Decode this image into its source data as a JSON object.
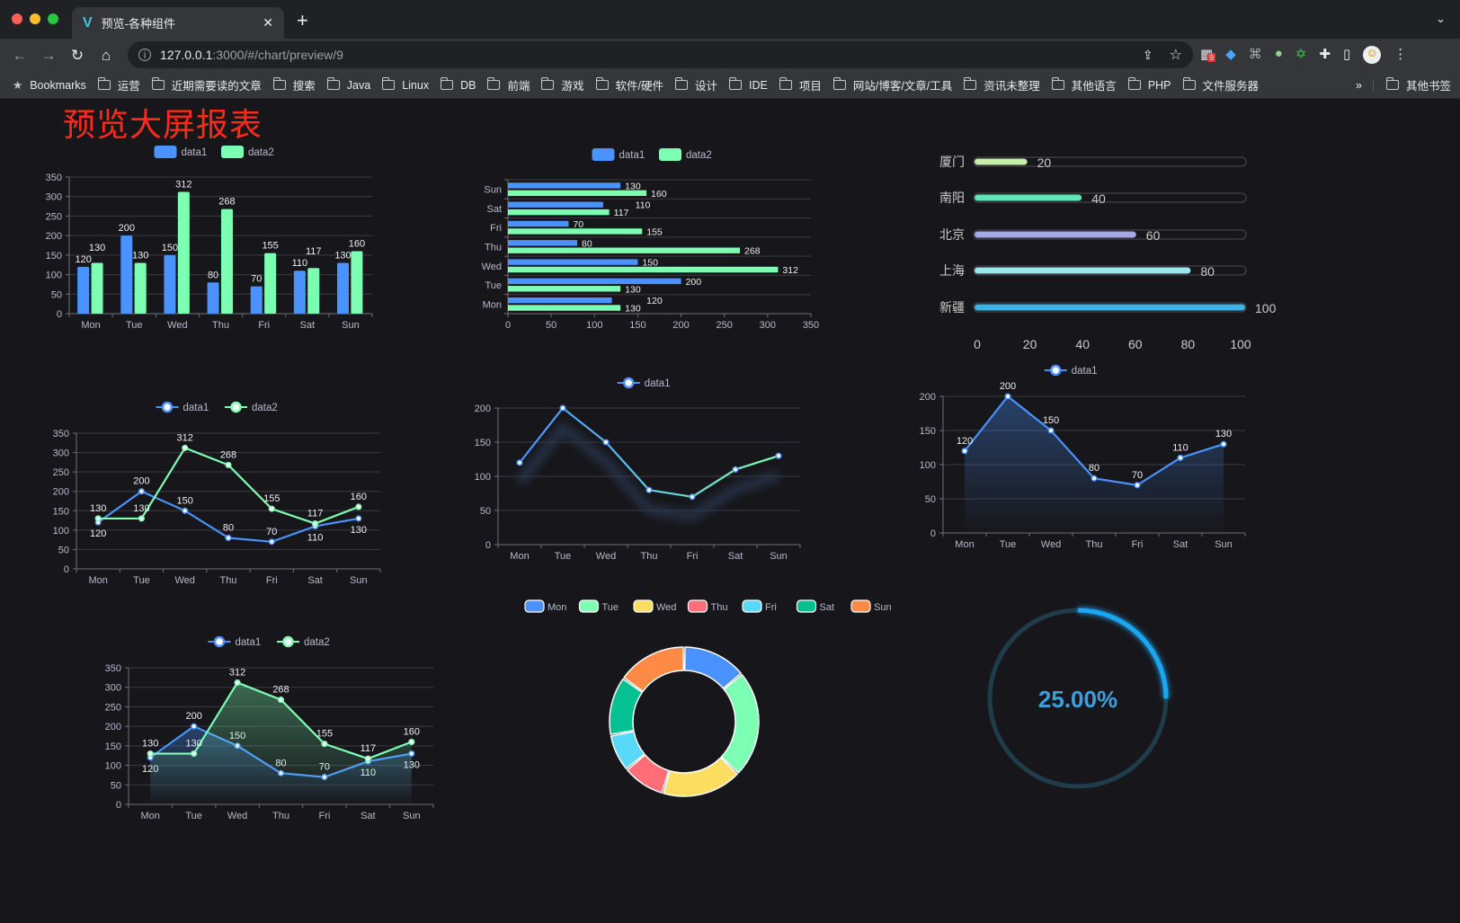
{
  "browser": {
    "tab_title": "预览-各种组件",
    "url_host": "127.0.0.1",
    "url_rest": ":3000/#/chart/preview/9",
    "extension_badge": "9",
    "bookmarks": [
      "Bookmarks",
      "运营",
      "近期需要读的文章",
      "搜索",
      "Java",
      "Linux",
      "DB",
      "前端",
      "游戏",
      "软件/硬件",
      "设计",
      "IDE",
      "项目",
      "网站/博客/文章/工具",
      "资讯未整理",
      "其他语言",
      "PHP",
      "文件服务器"
    ],
    "more": "»",
    "other_bookmarks": "其他书签"
  },
  "page": {
    "title": "预览大屏报表"
  },
  "colors": {
    "data1": "#4992ff",
    "data2": "#7cffb2",
    "title": "#ff2a1a",
    "gauge": "#1aa6f0"
  },
  "chart_data": [
    {
      "type": "bar",
      "categories": [
        "Mon",
        "Tue",
        "Wed",
        "Thu",
        "Fri",
        "Sat",
        "Sun"
      ],
      "ylim": [
        0,
        350
      ],
      "yticks": [
        0,
        50,
        100,
        150,
        200,
        250,
        300,
        350
      ],
      "legend": "top-center",
      "series": [
        {
          "name": "data1",
          "values": [
            120,
            200,
            150,
            80,
            70,
            110,
            130
          ]
        },
        {
          "name": "data2",
          "values": [
            130,
            130,
            312,
            268,
            155,
            117,
            160
          ]
        }
      ]
    },
    {
      "type": "bar",
      "orientation": "horizontal",
      "categories": [
        "Mon",
        "Tue",
        "Wed",
        "Thu",
        "Fri",
        "Sat",
        "Sun"
      ],
      "xlim": [
        0,
        350
      ],
      "xticks": [
        0,
        50,
        100,
        150,
        200,
        250,
        300,
        350
      ],
      "legend": "top-center",
      "series": [
        {
          "name": "data1",
          "values": [
            120,
            200,
            150,
            80,
            70,
            110,
            130
          ]
        },
        {
          "name": "data2",
          "values": [
            130,
            130,
            312,
            268,
            155,
            117,
            160
          ]
        }
      ]
    },
    {
      "type": "bar",
      "orientation": "horizontal",
      "style": "progress",
      "categories": [
        "厦门",
        "南阳",
        "北京",
        "上海",
        "新疆"
      ],
      "values": [
        20,
        40,
        60,
        80,
        100
      ],
      "xlim": [
        0,
        100
      ],
      "xticks": [
        0,
        20,
        40,
        60,
        80,
        100
      ],
      "colors": [
        "#c6eea8",
        "#5ee5b4",
        "#a3a8ea",
        "#9ae7ee",
        "#3db2e6"
      ]
    },
    {
      "type": "line",
      "categories": [
        "Mon",
        "Tue",
        "Wed",
        "Thu",
        "Fri",
        "Sat",
        "Sun"
      ],
      "ylim": [
        0,
        350
      ],
      "yticks": [
        0,
        50,
        100,
        150,
        200,
        250,
        300,
        350
      ],
      "legend": "top-center",
      "series": [
        {
          "name": "data1",
          "values": [
            120,
            200,
            150,
            80,
            70,
            110,
            130
          ]
        },
        {
          "name": "data2",
          "values": [
            130,
            130,
            312,
            268,
            155,
            117,
            160
          ]
        }
      ]
    },
    {
      "type": "line",
      "gradient_line": true,
      "categories": [
        "Mon",
        "Tue",
        "Wed",
        "Thu",
        "Fri",
        "Sat",
        "Sun"
      ],
      "ylim": [
        0,
        200
      ],
      "yticks": [
        0,
        50,
        100,
        150,
        200
      ],
      "legend": "top-center",
      "series": [
        {
          "name": "data1",
          "values": [
            120,
            200,
            150,
            80,
            70,
            110,
            130
          ]
        }
      ]
    },
    {
      "type": "area",
      "categories": [
        "Mon",
        "Tue",
        "Wed",
        "Thu",
        "Fri",
        "Sat",
        "Sun"
      ],
      "ylim": [
        0,
        200
      ],
      "yticks": [
        0,
        50,
        100,
        150,
        200
      ],
      "legend": "top-center",
      "series": [
        {
          "name": "data1",
          "values": [
            120,
            200,
            150,
            80,
            70,
            110,
            130
          ]
        }
      ]
    },
    {
      "type": "area",
      "categories": [
        "Mon",
        "Tue",
        "Wed",
        "Thu",
        "Fri",
        "Sat",
        "Sun"
      ],
      "ylim": [
        0,
        350
      ],
      "yticks": [
        0,
        50,
        100,
        150,
        200,
        250,
        300,
        350
      ],
      "legend": "top-center",
      "series": [
        {
          "name": "data1",
          "values": [
            120,
            200,
            150,
            80,
            70,
            110,
            130
          ]
        },
        {
          "name": "data2",
          "values": [
            130,
            130,
            312,
            268,
            155,
            117,
            160
          ]
        }
      ]
    },
    {
      "type": "pie",
      "donut": true,
      "legend": "top-center",
      "categories": [
        "Mon",
        "Tue",
        "Wed",
        "Thu",
        "Fri",
        "Sat",
        "Sun"
      ],
      "values": [
        120,
        200,
        150,
        80,
        70,
        110,
        130
      ],
      "colors": [
        "#4992ff",
        "#7cffb2",
        "#fddd60",
        "#ff6e76",
        "#58d9f9",
        "#05c091",
        "#ff8a45"
      ]
    },
    {
      "type": "gauge",
      "value": 25,
      "label": "25.00%"
    }
  ]
}
